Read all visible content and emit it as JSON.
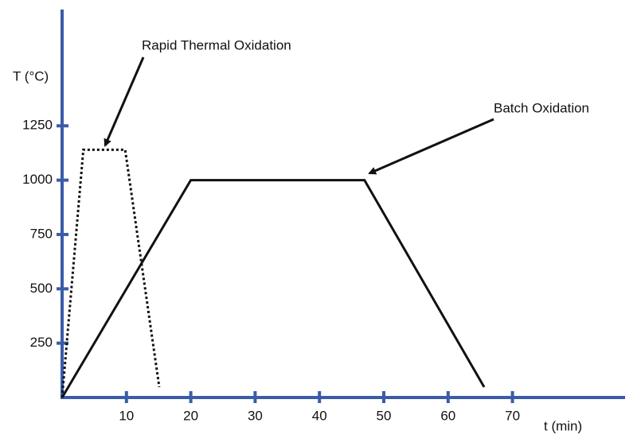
{
  "chart_data": {
    "type": "line",
    "xlabel": "t (min)",
    "ylabel": "T (°C)",
    "xlim": [
      0,
      87.5
    ],
    "ylim": [
      0,
      1785
    ],
    "xticks": [
      10,
      20,
      30,
      40,
      50,
      60,
      70
    ],
    "yticks": [
      250,
      500,
      750,
      1000,
      1250
    ],
    "axis_color": "#3a5ca8",
    "series": [
      {
        "color": "#111111",
        "dash": "solid",
        "x": [
          0,
          20,
          47,
          65.6
        ],
        "values": [
          0,
          1000,
          1000,
          48
        ]
      },
      {
        "color": "#111111",
        "dash": "dotted",
        "x": [
          0,
          3.3,
          9.8,
          15.1
        ],
        "values": [
          0,
          1140,
          1140,
          48
        ]
      }
    ],
    "annotations": [
      {
        "text": "Rapid Thermal Oxidation"
      },
      {
        "text": "Batch Oxidation"
      }
    ]
  }
}
